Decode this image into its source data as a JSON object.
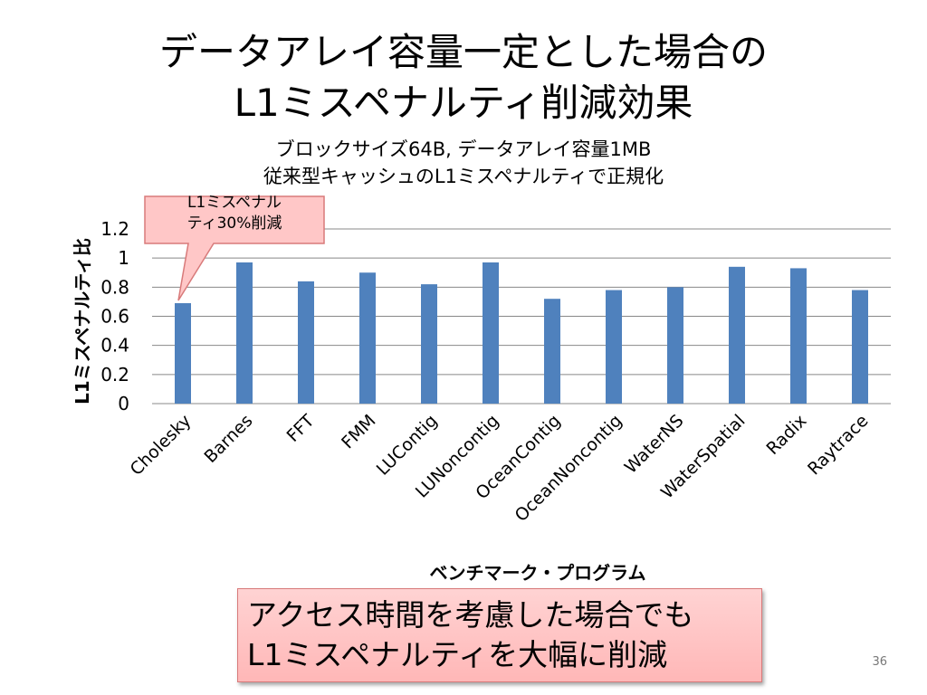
{
  "slide": {
    "title_line1": "データアレイ容量一定とした場合の",
    "title_line2": "L1ミスペナルティ削減効果",
    "subtitle_line1": "ブロックサイズ64B,  データアレイ容量1MB",
    "subtitle_line2": "従来型キャッシュのL1ミスペナルティで正規化",
    "callout_line1": "L1ミスペナル",
    "callout_line2": "ティ30%削減",
    "conclusion_line1": "アクセス時間を考慮した場合でも",
    "conclusion_line2": "L1ミスペナルティを大幅に削減",
    "page_number": "36"
  },
  "chart_data": {
    "type": "bar",
    "title": "",
    "xlabel": "ベンチマーク・プログラム",
    "ylabel": "L1ミスペナルティ比",
    "categories": [
      "Cholesky",
      "Barnes",
      "FFT",
      "FMM",
      "LUContig",
      "LUNoncontig",
      "OceanContig",
      "OceanNoncontig",
      "WaterNS",
      "WaterSpatial",
      "Radix",
      "Raytrace"
    ],
    "values": [
      0.69,
      0.97,
      0.84,
      0.9,
      0.82,
      0.97,
      0.72,
      0.78,
      0.8,
      0.94,
      0.93,
      0.78
    ],
    "ylim": [
      0,
      1.2
    ],
    "yticks": [
      "0",
      "0.2",
      "0.4",
      "0.6",
      "0.8",
      "1",
      "1.2"
    ],
    "ytick_values": [
      0,
      0.2,
      0.4,
      0.6,
      0.8,
      1.0,
      1.2
    ],
    "grid": true,
    "legend": "none",
    "bar_color": "#4f81bd"
  },
  "colors": {
    "callout_fill": "#ffc7c7",
    "callout_border": "#d87a7a",
    "grid": "#888888"
  }
}
